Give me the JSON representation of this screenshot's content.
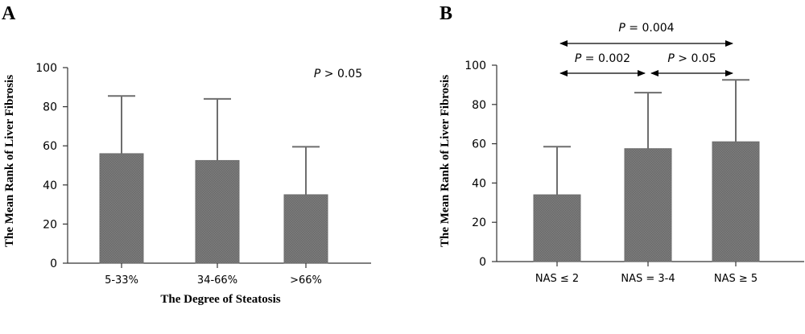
{
  "chart_data": [
    {
      "type": "bar",
      "panel_label": "A",
      "title": "",
      "xlabel": "The Degree of Steatosis",
      "ylabel": "The Mean Rank of Liver Fibrosis",
      "ylim": [
        0,
        100
      ],
      "yticks": [
        0,
        20,
        40,
        60,
        80,
        100
      ],
      "categories": [
        "5-33%",
        "34-66%",
        ">66%"
      ],
      "values": [
        56,
        52.5,
        35
      ],
      "error_upper": [
        85.5,
        84,
        59.5
      ],
      "annotation": {
        "p_symbol": "P",
        "p_text": " > 0.05"
      },
      "bar_color": "#7a7a7a",
      "grid": false
    },
    {
      "type": "bar",
      "panel_label": "B",
      "title": "",
      "xlabel": "",
      "ylabel": "The Mean Rank of Liver Fibrosis",
      "ylim": [
        0,
        100
      ],
      "yticks": [
        0,
        20,
        40,
        60,
        80,
        100
      ],
      "categories": [
        "NAS  ≤ 2",
        "NAS = 3-4",
        "NAS  ≥ 5"
      ],
      "values": [
        34,
        57.5,
        61
      ],
      "error_upper": [
        58.5,
        86,
        92.5
      ],
      "comparisons": [
        {
          "from": 0,
          "to": 1,
          "p_symbol": "P",
          "p_text": " = 0.002"
        },
        {
          "from": 1,
          "to": 2,
          "p_symbol": "P",
          "p_text": " > 0.05"
        },
        {
          "from": 0,
          "to": 2,
          "p_symbol": "P",
          "p_text": " = 0.004"
        }
      ],
      "bar_color": "#7a7a7a",
      "grid": false
    }
  ]
}
